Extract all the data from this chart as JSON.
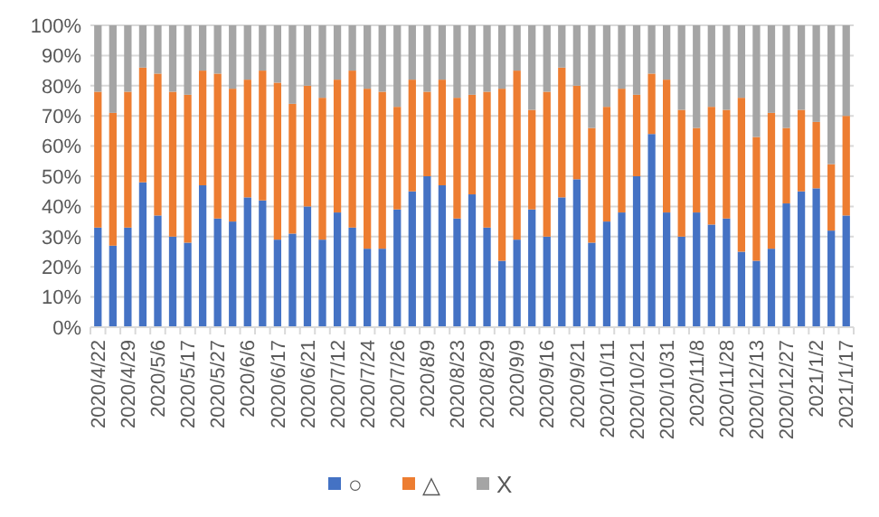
{
  "chart_data": {
    "type": "bar",
    "stacked": true,
    "grid": "y",
    "legend": "bottom",
    "categories": [
      "2020/4/22",
      null,
      "2020/4/29",
      null,
      "2020/5/6",
      null,
      "2020/5/17",
      null,
      "2020/5/27",
      null,
      "2020/6/6",
      null,
      "2020/6/17",
      null,
      "2020/6/21",
      null,
      "2020/7/12",
      null,
      "2020/7/24",
      null,
      "2020/7/26",
      null,
      "2020/8/9",
      null,
      "2020/8/23",
      null,
      "2020/8/29",
      null,
      "2020/9/9",
      null,
      "2020/9/16",
      null,
      "2020/9/21",
      null,
      "2020/10/11",
      null,
      "2020/10/21",
      null,
      "2020/10/31",
      null,
      "2020/11/8",
      null,
      "2020/11/28",
      null,
      "2020/12/13",
      null,
      "2020/12/27",
      null,
      "2021/1/2",
      null,
      "2021/1/17"
    ],
    "ylim": [
      0,
      100
    ],
    "yticks": [
      {
        "value": 0,
        "label": "0%"
      },
      {
        "value": 10,
        "label": "10%"
      },
      {
        "value": 20,
        "label": "20%"
      },
      {
        "value": 30,
        "label": "30%"
      },
      {
        "value": 40,
        "label": "40%"
      },
      {
        "value": 50,
        "label": "50%"
      },
      {
        "value": 60,
        "label": "60%"
      },
      {
        "value": 70,
        "label": "70%"
      },
      {
        "value": 80,
        "label": "80%"
      },
      {
        "value": 90,
        "label": "90%"
      },
      {
        "value": 100,
        "label": "100%"
      }
    ],
    "series": [
      {
        "name": "○",
        "color": "#4472c4",
        "values": [
          33,
          27,
          33,
          48,
          37,
          30,
          28,
          47,
          36,
          35,
          43,
          42,
          29,
          31,
          40,
          29,
          38,
          33,
          26,
          26,
          39,
          45,
          50,
          47,
          36,
          44,
          33,
          22,
          29,
          39,
          30,
          43,
          49,
          28,
          35,
          38,
          50,
          64,
          38,
          30,
          38,
          34,
          36,
          25,
          22,
          26,
          41,
          45,
          46,
          32,
          37
        ]
      },
      {
        "name": "△",
        "color": "#ed7d31",
        "values": [
          45,
          44,
          45,
          38,
          47,
          48,
          49,
          38,
          48,
          44,
          39,
          43,
          52,
          43,
          40,
          47,
          44,
          52,
          53,
          52,
          34,
          37,
          28,
          35,
          40,
          33,
          45,
          57,
          56,
          33,
          48,
          43,
          31,
          38,
          38,
          41,
          27,
          20,
          44,
          42,
          28,
          39,
          36,
          51,
          41,
          45,
          25,
          27,
          22,
          22,
          33
        ]
      },
      {
        "name": "X",
        "color": "#a5a5a5",
        "values": [
          22,
          29,
          22,
          14,
          16,
          22,
          23,
          15,
          16,
          21,
          18,
          15,
          19,
          26,
          20,
          24,
          18,
          15,
          21,
          22,
          27,
          18,
          22,
          18,
          24,
          23,
          22,
          21,
          15,
          28,
          22,
          14,
          20,
          34,
          27,
          21,
          23,
          16,
          18,
          28,
          34,
          27,
          28,
          24,
          37,
          29,
          34,
          28,
          32,
          46,
          30
        ]
      }
    ]
  }
}
